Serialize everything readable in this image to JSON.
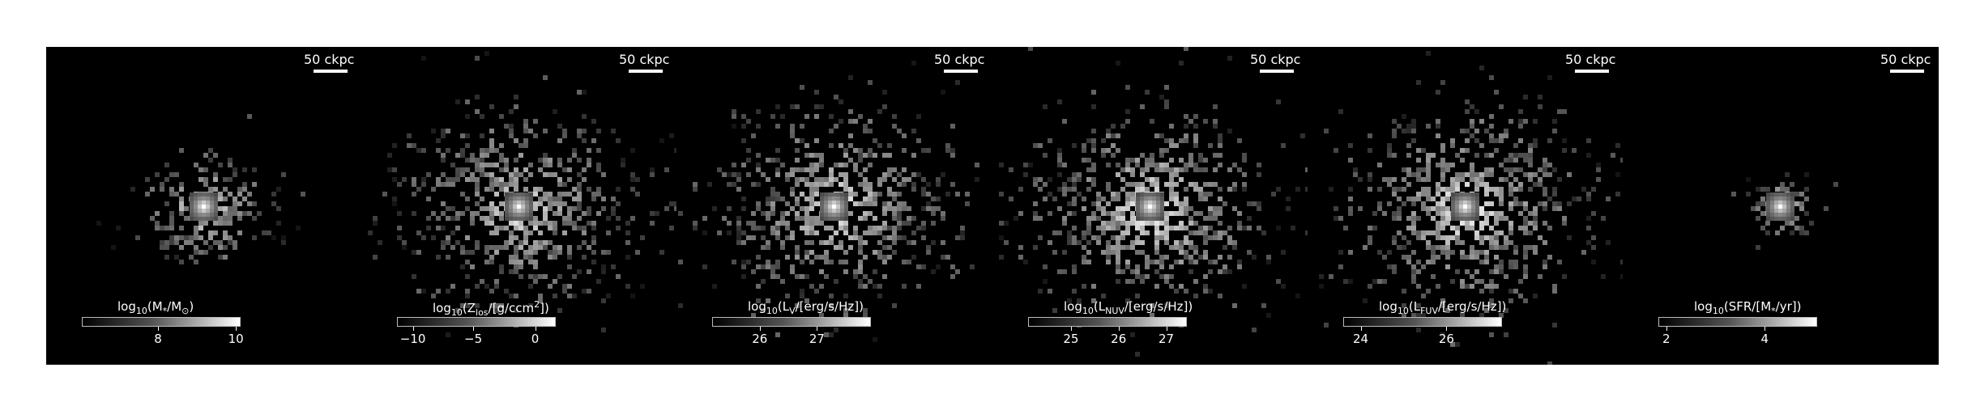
{
  "figure": {
    "panels": [
      {
        "scale_label": "50 ckpc",
        "colorbar": {
          "prefix": "log",
          "sub": "10",
          "body": "(M",
          "body_sub": "*",
          "body2": "/M",
          "body2_sub": "⊙",
          "suffix": ")",
          "ticks": [
            {
              "label": "8",
              "frac": 0.48
            },
            {
              "label": "10",
              "frac": 0.97
            }
          ]
        },
        "intensity": {
          "spread": 40,
          "count": 220,
          "core": 0.85,
          "peak": 1.0
        }
      },
      {
        "scale_label": "50 ckpc",
        "colorbar": {
          "prefix": "log",
          "sub": "10",
          "body": "(Z",
          "body_sub": "los",
          "body2": "/[g/ccm",
          "body2_sup": "2",
          "suffix": "])",
          "ticks": [
            {
              "label": "−10",
              "frac": 0.1
            },
            {
              "label": "−5",
              "frac": 0.48
            },
            {
              "label": "0",
              "frac": 0.87
            }
          ]
        },
        "intensity": {
          "spread": 75,
          "count": 700,
          "core": 0.7,
          "peak": 0.95
        }
      },
      {
        "scale_label": "50 ckpc",
        "colorbar": {
          "prefix": "log",
          "sub": "10",
          "body": "(L",
          "body_sub": "V",
          "body2": "/[erg/s/Hz])",
          "suffix": "",
          "ticks": [
            {
              "label": "26",
              "frac": 0.3
            },
            {
              "label": "27",
              "frac": 0.66
            }
          ]
        },
        "intensity": {
          "spread": 75,
          "count": 700,
          "core": 0.75,
          "peak": 1.0
        }
      },
      {
        "scale_label": "50 ckpc",
        "colorbar": {
          "prefix": "log",
          "sub": "10",
          "body": "(L",
          "body_sub": "NUV",
          "body2": "/[erg/s/Hz])",
          "suffix": "",
          "ticks": [
            {
              "label": "25",
              "frac": 0.27
            },
            {
              "label": "26",
              "frac": 0.57
            },
            {
              "label": "27",
              "frac": 0.87
            }
          ]
        },
        "intensity": {
          "spread": 78,
          "count": 750,
          "core": 0.8,
          "peak": 1.0
        }
      },
      {
        "scale_label": "50 ckpc",
        "colorbar": {
          "prefix": "log",
          "sub": "10",
          "body": "(L",
          "body_sub": "FUV",
          "body2": "/[erg/s/Hz])",
          "suffix": "",
          "ticks": [
            {
              "label": "24",
              "frac": 0.11
            },
            {
              "label": "26",
              "frac": 0.65
            }
          ]
        },
        "intensity": {
          "spread": 78,
          "count": 750,
          "core": 0.8,
          "peak": 1.0
        }
      },
      {
        "scale_label": "50 ckpc",
        "colorbar": {
          "prefix": "log",
          "sub": "10",
          "body": "(SFR/[M",
          "body_sub": "*",
          "body2": "/yr])",
          "suffix": "",
          "ticks": [
            {
              "label": "2",
              "frac": 0.05
            },
            {
              "label": "4",
              "frac": 0.67
            }
          ]
        },
        "intensity": {
          "spread": 25,
          "count": 70,
          "core": 0.7,
          "peak": 0.95
        }
      }
    ]
  }
}
